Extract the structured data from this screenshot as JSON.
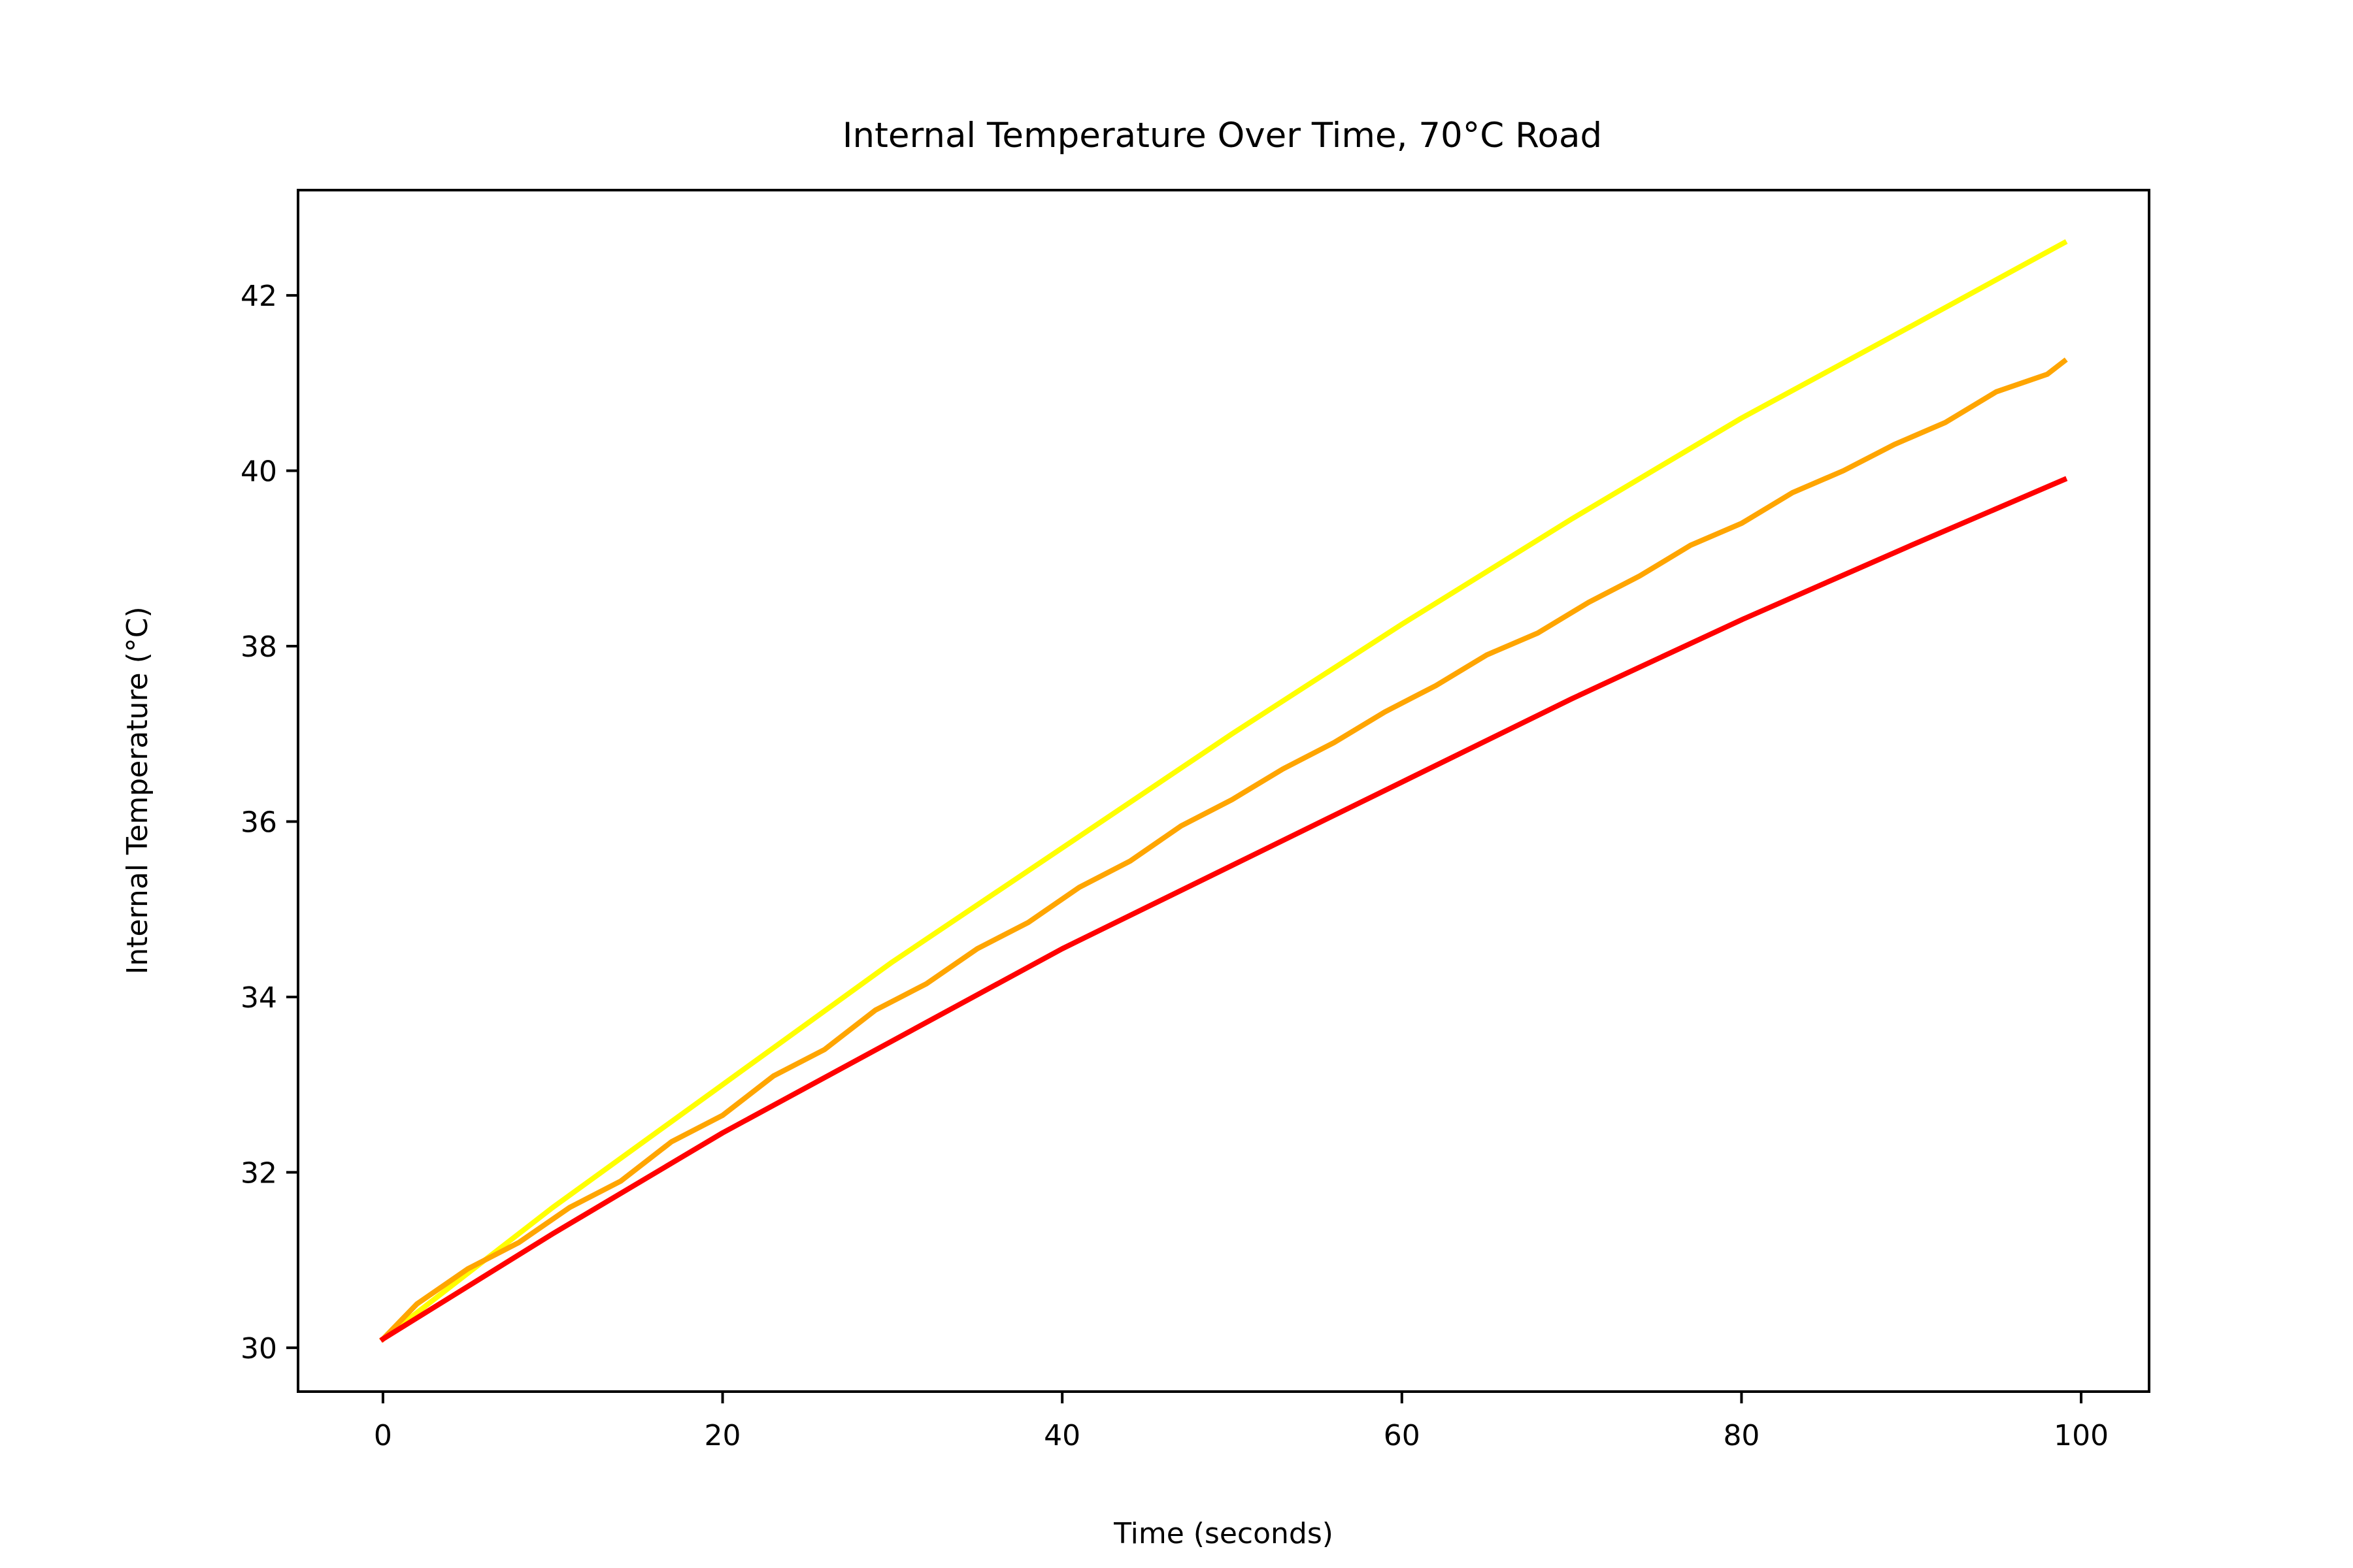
{
  "chart_data": {
    "type": "line",
    "title": "Internal Temperature Over Time, 70°C Road",
    "xlabel": "Time (seconds)",
    "ylabel": "Internal Temperature (°C)",
    "xlim": [
      -5,
      104
    ],
    "ylim": [
      29.5,
      43.2
    ],
    "xticks": [
      "0",
      "20",
      "40",
      "60",
      "80",
      "100"
    ],
    "yticks": [
      "30",
      "32",
      "34",
      "36",
      "38",
      "40",
      "42"
    ],
    "grid": false,
    "legend": "none",
    "series": [
      {
        "color": "#ffff00",
        "x": [
          0,
          10,
          20,
          30,
          40,
          50,
          60,
          70,
          80,
          90,
          99
        ],
        "y": [
          30.1,
          31.6,
          33.0,
          34.4,
          35.7,
          37.0,
          38.25,
          39.45,
          40.6,
          41.65,
          42.6
        ]
      },
      {
        "color": "#ffa500",
        "x": [
          0,
          2,
          5,
          8,
          11,
          14,
          17,
          20,
          23,
          26,
          29,
          32,
          35,
          38,
          41,
          44,
          47,
          50,
          53,
          56,
          59,
          62,
          65,
          68,
          71,
          74,
          77,
          80,
          83,
          86,
          89,
          92,
          95,
          98,
          99
        ],
        "y": [
          30.1,
          30.5,
          30.9,
          31.2,
          31.6,
          31.9,
          32.35,
          32.65,
          33.1,
          33.4,
          33.85,
          34.15,
          34.55,
          34.85,
          35.25,
          35.55,
          35.95,
          36.25,
          36.6,
          36.9,
          37.25,
          37.55,
          37.9,
          38.15,
          38.5,
          38.8,
          39.15,
          39.4,
          39.75,
          40.0,
          40.3,
          40.55,
          40.9,
          41.1,
          41.25
        ]
      },
      {
        "color": "#ff0000",
        "x": [
          0,
          10,
          20,
          30,
          40,
          50,
          60,
          70,
          80,
          90,
          99
        ],
        "y": [
          30.1,
          31.3,
          32.45,
          33.5,
          34.55,
          35.5,
          36.45,
          37.4,
          38.3,
          39.15,
          39.9
        ]
      }
    ]
  }
}
